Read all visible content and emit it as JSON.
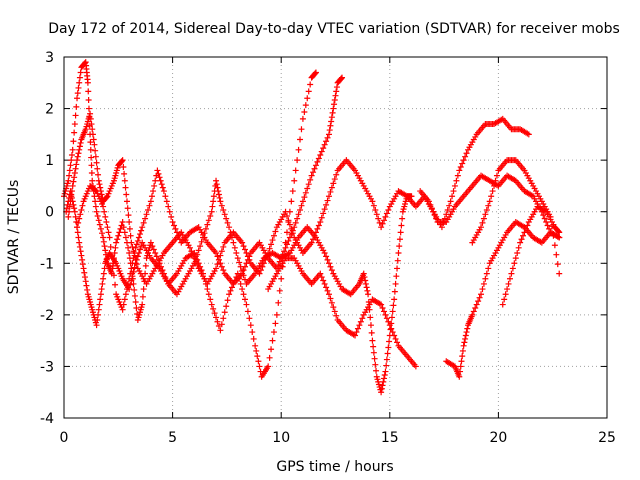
{
  "chart_data": {
    "type": "scatter",
    "title": "Day 172 of 2014, Sidereal Day-to-day VTEC variation (SDTVAR) for receiver mobs",
    "xlabel": "GPS time / hours",
    "ylabel": "SDTVAR / TECUs",
    "xlim": [
      0,
      25
    ],
    "ylim": [
      -4,
      3
    ],
    "xticks": [
      0,
      5,
      10,
      15,
      20,
      25
    ],
    "yticks": [
      -4,
      -3,
      -2,
      -1,
      0,
      1,
      2,
      3
    ],
    "grid": true,
    "marker": "plus",
    "color": "#ff0000",
    "series": [
      {
        "points": [
          [
            0.0,
            0.3
          ],
          [
            0.2,
            0.6
          ],
          [
            0.4,
            1.2
          ],
          [
            0.6,
            2.2
          ],
          [
            0.8,
            2.8
          ],
          [
            1.0,
            2.9
          ],
          [
            1.1,
            2.5
          ],
          [
            1.2,
            1.5
          ],
          [
            1.3,
            0.6
          ],
          [
            1.5,
            0.0
          ],
          [
            1.8,
            -0.5
          ],
          [
            2.0,
            -1.0
          ],
          [
            2.2,
            -1.2
          ],
          [
            2.4,
            -0.6
          ],
          [
            2.7,
            -0.2
          ],
          [
            3.0,
            -0.8
          ],
          [
            3.2,
            -1.4
          ],
          [
            3.4,
            -2.1
          ],
          [
            3.6,
            -1.8
          ],
          [
            3.8,
            -0.9
          ],
          [
            4.0,
            -0.6
          ],
          [
            4.4,
            -1.0
          ],
          [
            4.8,
            -1.4
          ],
          [
            5.2,
            -1.2
          ],
          [
            5.6,
            -0.9
          ],
          [
            6.0,
            -0.8
          ],
          [
            6.4,
            -1.2
          ],
          [
            6.8,
            -1.8
          ],
          [
            7.2,
            -2.3
          ],
          [
            7.6,
            -1.6
          ],
          [
            8.0,
            -1.2
          ],
          [
            8.4,
            -1.8
          ],
          [
            8.8,
            -2.6
          ],
          [
            9.1,
            -3.2
          ],
          [
            9.4,
            -3.0
          ],
          [
            9.8,
            -2.0
          ],
          [
            10.2,
            -0.6
          ],
          [
            10.6,
            0.6
          ],
          [
            11.0,
            1.8
          ],
          [
            11.4,
            2.6
          ],
          [
            11.6,
            2.7
          ]
        ]
      },
      {
        "points": [
          [
            0.2,
            -0.1
          ],
          [
            0.4,
            0.5
          ],
          [
            0.6,
            1.0
          ],
          [
            0.8,
            1.4
          ],
          [
            1.0,
            1.6
          ],
          [
            1.2,
            1.9
          ],
          [
            1.4,
            1.3
          ],
          [
            1.6,
            0.6
          ],
          [
            1.8,
            0.2
          ],
          [
            2.0,
            0.3
          ],
          [
            2.3,
            0.6
          ],
          [
            2.5,
            0.9
          ],
          [
            2.7,
            1.0
          ],
          [
            2.9,
            0.2
          ],
          [
            3.1,
            -0.6
          ],
          [
            3.4,
            -1.1
          ],
          [
            3.8,
            -1.4
          ],
          [
            4.2,
            -1.1
          ],
          [
            4.6,
            -0.8
          ],
          [
            5.0,
            -0.6
          ],
          [
            5.4,
            -0.4
          ],
          [
            5.8,
            -0.7
          ],
          [
            6.2,
            -1.1
          ],
          [
            6.6,
            -1.4
          ],
          [
            7.0,
            -1.1
          ],
          [
            7.4,
            -0.6
          ],
          [
            7.8,
            -0.4
          ],
          [
            8.2,
            -0.6
          ],
          [
            8.6,
            -1.0
          ],
          [
            9.0,
            -1.2
          ],
          [
            9.4,
            -0.8
          ],
          [
            9.8,
            -0.3
          ],
          [
            10.2,
            0.0
          ],
          [
            10.6,
            -0.5
          ],
          [
            11.0,
            -0.8
          ],
          [
            11.4,
            -0.6
          ],
          [
            11.8,
            -0.2
          ],
          [
            12.2,
            0.3
          ],
          [
            12.6,
            0.8
          ],
          [
            13.0,
            1.0
          ],
          [
            13.4,
            0.8
          ],
          [
            13.8,
            0.5
          ],
          [
            14.2,
            0.2
          ],
          [
            14.6,
            -0.3
          ],
          [
            15.0,
            0.1
          ],
          [
            15.4,
            0.4
          ],
          [
            15.8,
            0.3
          ],
          [
            16.2,
            0.1
          ],
          [
            16.6,
            0.3
          ],
          [
            17.0,
            0.0
          ],
          [
            17.4,
            -0.3
          ],
          [
            17.8,
            0.2
          ],
          [
            18.2,
            0.8
          ],
          [
            18.6,
            1.2
          ],
          [
            19.0,
            1.5
          ],
          [
            19.4,
            1.7
          ],
          [
            19.8,
            1.7
          ],
          [
            20.2,
            1.8
          ],
          [
            20.6,
            1.6
          ],
          [
            21.0,
            1.6
          ],
          [
            21.4,
            1.5
          ]
        ]
      },
      {
        "points": [
          [
            0.6,
            -0.3
          ],
          [
            0.9,
            0.2
          ],
          [
            1.2,
            0.5
          ],
          [
            1.5,
            0.4
          ],
          [
            1.8,
            0.1
          ],
          [
            2.1,
            -0.5
          ],
          [
            2.4,
            -1.6
          ],
          [
            2.7,
            -1.9
          ],
          [
            3.0,
            -1.3
          ],
          [
            3.3,
            -0.7
          ],
          [
            3.6,
            -0.3
          ],
          [
            4.0,
            0.2
          ],
          [
            4.3,
            0.8
          ],
          [
            4.6,
            0.4
          ],
          [
            5.0,
            -0.2
          ],
          [
            5.4,
            -0.6
          ],
          [
            5.8,
            -0.4
          ],
          [
            6.2,
            -0.3
          ],
          [
            6.6,
            -0.6
          ],
          [
            7.0,
            -0.8
          ],
          [
            7.4,
            -1.2
          ],
          [
            7.8,
            -1.4
          ],
          [
            8.2,
            -1.2
          ],
          [
            8.6,
            -0.8
          ],
          [
            9.0,
            -0.6
          ],
          [
            9.4,
            -0.9
          ],
          [
            9.8,
            -1.1
          ],
          [
            10.2,
            -0.7
          ],
          [
            10.6,
            -0.3
          ],
          [
            11.0,
            0.2
          ],
          [
            11.4,
            0.7
          ],
          [
            11.8,
            1.1
          ],
          [
            12.2,
            1.5
          ],
          [
            12.4,
            2.0
          ],
          [
            12.6,
            2.5
          ],
          [
            12.8,
            2.6
          ]
        ]
      },
      {
        "points": [
          [
            0.1,
            0.0
          ],
          [
            0.3,
            0.4
          ],
          [
            0.5,
            0.0
          ],
          [
            0.7,
            -0.6
          ],
          [
            0.9,
            -1.1
          ],
          [
            1.1,
            -1.6
          ],
          [
            1.3,
            -1.9
          ],
          [
            1.5,
            -2.2
          ],
          [
            1.7,
            -1.6
          ],
          [
            1.9,
            -1.0
          ],
          [
            2.1,
            -0.8
          ],
          [
            2.4,
            -1.0
          ],
          [
            2.7,
            -1.3
          ],
          [
            3.0,
            -1.5
          ],
          [
            3.3,
            -1.0
          ],
          [
            3.6,
            -0.6
          ],
          [
            4.0,
            -0.9
          ],
          [
            4.4,
            -1.1
          ],
          [
            4.8,
            -1.4
          ],
          [
            5.2,
            -1.6
          ],
          [
            5.6,
            -1.3
          ],
          [
            6.0,
            -1.0
          ],
          [
            6.4,
            -0.5
          ],
          [
            6.8,
            0.0
          ],
          [
            7.0,
            0.6
          ],
          [
            7.2,
            0.2
          ],
          [
            7.6,
            -0.3
          ],
          [
            8.0,
            -0.9
          ],
          [
            8.4,
            -1.4
          ],
          [
            8.8,
            -1.2
          ],
          [
            9.2,
            -0.9
          ],
          [
            9.6,
            -0.8
          ],
          [
            10.0,
            -0.9
          ],
          [
            10.4,
            -0.8
          ],
          [
            10.8,
            -0.5
          ],
          [
            11.2,
            -0.3
          ],
          [
            11.6,
            -0.5
          ],
          [
            12.0,
            -0.8
          ],
          [
            12.4,
            -1.2
          ],
          [
            12.8,
            -1.5
          ],
          [
            13.2,
            -1.6
          ],
          [
            13.6,
            -1.4
          ],
          [
            13.8,
            -1.2
          ],
          [
            14.0,
            -1.6
          ],
          [
            14.2,
            -2.5
          ],
          [
            14.4,
            -3.2
          ],
          [
            14.6,
            -3.5
          ],
          [
            14.8,
            -3.1
          ],
          [
            15.0,
            -2.4
          ],
          [
            15.2,
            -1.7
          ],
          [
            15.4,
            -0.8
          ],
          [
            15.6,
            0.0
          ],
          [
            15.8,
            0.3
          ],
          [
            16.0,
            0.3
          ]
        ]
      },
      {
        "points": [
          [
            9.4,
            -1.5
          ],
          [
            9.8,
            -1.2
          ],
          [
            10.2,
            -0.9
          ],
          [
            10.6,
            -0.9
          ],
          [
            11.0,
            -1.2
          ],
          [
            11.4,
            -1.4
          ],
          [
            11.8,
            -1.2
          ],
          [
            12.2,
            -1.6
          ],
          [
            12.6,
            -2.1
          ],
          [
            13.0,
            -2.3
          ],
          [
            13.4,
            -2.4
          ],
          [
            13.8,
            -2.0
          ],
          [
            14.2,
            -1.7
          ],
          [
            14.6,
            -1.8
          ],
          [
            15.0,
            -2.2
          ],
          [
            15.4,
            -2.6
          ],
          [
            15.8,
            -2.8
          ],
          [
            16.2,
            -3.0
          ]
        ]
      },
      {
        "points": [
          [
            16.4,
            0.4
          ],
          [
            16.8,
            0.2
          ],
          [
            17.2,
            -0.2
          ],
          [
            17.6,
            -0.2
          ],
          [
            18.0,
            0.1
          ],
          [
            18.4,
            0.3
          ],
          [
            18.8,
            0.5
          ],
          [
            19.2,
            0.7
          ],
          [
            19.6,
            0.6
          ],
          [
            20.0,
            0.5
          ],
          [
            20.4,
            0.7
          ],
          [
            20.8,
            0.6
          ],
          [
            21.2,
            0.4
          ],
          [
            21.6,
            0.3
          ],
          [
            22.0,
            0.0
          ],
          [
            22.4,
            -0.4
          ],
          [
            22.8,
            -0.5
          ]
        ]
      },
      {
        "points": [
          [
            17.6,
            -2.9
          ],
          [
            18.0,
            -3.0
          ],
          [
            18.2,
            -3.2
          ],
          [
            18.4,
            -2.6
          ],
          [
            18.6,
            -2.2
          ],
          [
            18.8,
            -2.0
          ],
          [
            19.2,
            -1.6
          ],
          [
            19.6,
            -1.0
          ],
          [
            20.0,
            -0.7
          ],
          [
            20.4,
            -0.4
          ],
          [
            20.8,
            -0.2
          ],
          [
            21.2,
            -0.3
          ],
          [
            21.6,
            -0.5
          ],
          [
            22.0,
            -0.6
          ],
          [
            22.4,
            -0.4
          ],
          [
            22.8,
            -0.5
          ]
        ]
      },
      {
        "points": [
          [
            18.8,
            -0.6
          ],
          [
            19.2,
            -0.3
          ],
          [
            19.6,
            0.2
          ],
          [
            20.0,
            0.8
          ],
          [
            20.4,
            1.0
          ],
          [
            20.8,
            1.0
          ],
          [
            21.2,
            0.8
          ],
          [
            21.6,
            0.5
          ],
          [
            22.0,
            0.2
          ],
          [
            22.4,
            -0.1
          ],
          [
            22.8,
            -1.2
          ]
        ]
      },
      {
        "points": [
          [
            20.2,
            -1.8
          ],
          [
            20.6,
            -1.2
          ],
          [
            21.0,
            -0.6
          ],
          [
            21.4,
            -0.2
          ],
          [
            21.8,
            0.1
          ],
          [
            22.2,
            0.0
          ],
          [
            22.6,
            -0.3
          ],
          [
            22.8,
            -0.4
          ]
        ]
      }
    ]
  }
}
